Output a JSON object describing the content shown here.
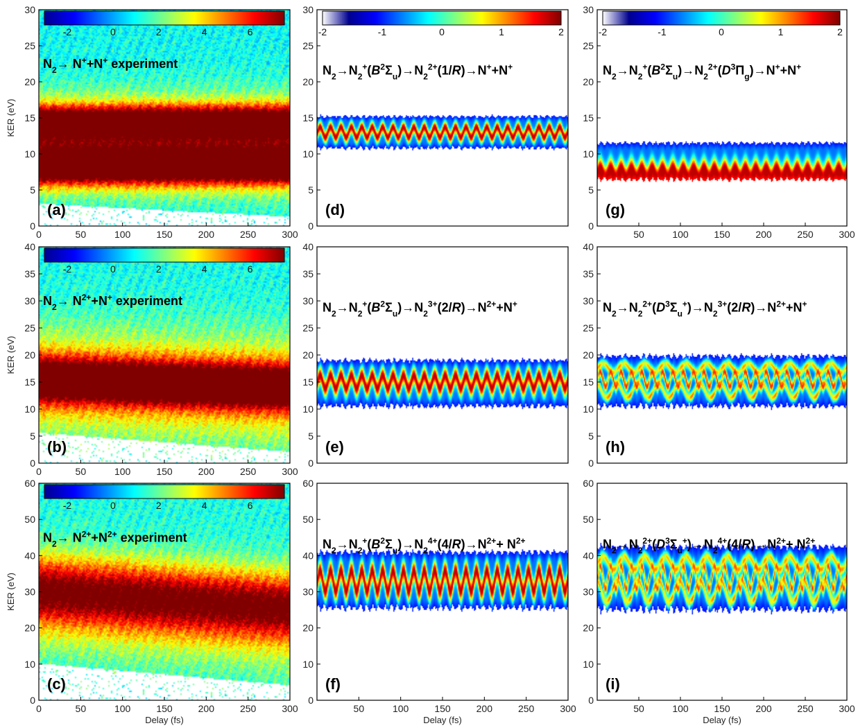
{
  "figure": {
    "colormap": [
      "#00008f",
      "#0000ff",
      "#0080ff",
      "#00ffff",
      "#80ff80",
      "#ffff00",
      "#ff8000",
      "#ff0000",
      "#800000"
    ]
  },
  "chart_data": [
    {
      "id": "a",
      "label": "(a)",
      "type": "heatmap",
      "kind": "experiment",
      "title_runs": [
        [
          "N",
          "n"
        ],
        [
          "2",
          "sub"
        ],
        [
          "→ N",
          "n"
        ],
        [
          "+",
          "sup"
        ],
        [
          "+N",
          "n"
        ],
        [
          "+",
          "sup"
        ],
        [
          " experiment",
          "n"
        ]
      ],
      "ylabel": "KER (eV)",
      "xlabel": "",
      "xlim": [
        0,
        300
      ],
      "ylim": [
        0,
        30
      ],
      "xticks": [
        "0",
        "50",
        "100",
        "150",
        "200",
        "250",
        "300"
      ],
      "yticks": [
        "0",
        "5",
        "10",
        "15",
        "20",
        "25",
        "30"
      ],
      "colorbar": {
        "range": [
          -3,
          7.5
        ],
        "ticks": [
          "-2",
          "0",
          "2",
          "4",
          "6"
        ],
        "tick_values": [
          -2,
          0,
          2,
          4,
          6
        ]
      },
      "bands": [
        {
          "center": 8.2,
          "width": 2.4,
          "amp": 7.3
        },
        {
          "center": 14.5,
          "width": 2.2,
          "amp": 6.4
        },
        {
          "center": 11.3,
          "width": 6.0,
          "amp": 4.6
        }
      ],
      "background": 1.0,
      "drift": 0,
      "low_cut_start": 3.0,
      "low_cut_end": 1.2
    },
    {
      "id": "b",
      "label": "(b)",
      "type": "heatmap",
      "kind": "experiment",
      "title_runs": [
        [
          "N",
          "n"
        ],
        [
          "2",
          "sub"
        ],
        [
          "→ N",
          "n"
        ],
        [
          "2+",
          "sup"
        ],
        [
          "+N",
          "n"
        ],
        [
          "+",
          "sup"
        ],
        [
          " experiment",
          "n"
        ]
      ],
      "ylabel": "KER (eV)",
      "xlabel": "",
      "xlim": [
        0,
        300
      ],
      "ylim": [
        0,
        40
      ],
      "xticks": [
        "0",
        "50",
        "100",
        "150",
        "200",
        "250",
        "300"
      ],
      "yticks": [
        "0",
        "5",
        "10",
        "15",
        "20",
        "25",
        "30",
        "35",
        "40"
      ],
      "colorbar": {
        "range": [
          -3,
          7.5
        ],
        "ticks": [
          "-2",
          "0",
          "2",
          "4",
          "6"
        ],
        "tick_values": [
          -2,
          0,
          2,
          4,
          6
        ]
      },
      "bands": [
        {
          "center": 15.5,
          "width": 4.0,
          "amp": 6.6
        },
        {
          "center": 15.0,
          "width": 9.5,
          "amp": 3.6
        }
      ],
      "background": 1.1,
      "drift": -1.5,
      "low_cut_start": 5.5,
      "low_cut_end": 2.0
    },
    {
      "id": "c",
      "label": "(c)",
      "type": "heatmap",
      "kind": "experiment",
      "title_runs": [
        [
          "N",
          "n"
        ],
        [
          "2",
          "sub"
        ],
        [
          "→ N",
          "n"
        ],
        [
          "2+",
          "sup"
        ],
        [
          "+N",
          "n"
        ],
        [
          "2+",
          "sup"
        ],
        [
          " experiment",
          "n"
        ]
      ],
      "ylabel": "KER (eV)",
      "xlabel": "Delay (fs)",
      "xlim": [
        0,
        300
      ],
      "ylim": [
        0,
        60
      ],
      "xticks": [
        "0",
        "50",
        "100",
        "150",
        "200",
        "250",
        "300"
      ],
      "yticks": [
        "0",
        "10",
        "20",
        "30",
        "40",
        "50",
        "60"
      ],
      "colorbar": {
        "range": [
          -3,
          7.5
        ],
        "ticks": [
          "-2",
          "0",
          "2",
          "4",
          "6"
        ],
        "tick_values": [
          -2,
          0,
          2,
          4,
          6
        ]
      },
      "bands": [
        {
          "center": 31.0,
          "width": 9.0,
          "amp": 5.0
        },
        {
          "center": 26.0,
          "width": 13.0,
          "amp": 2.4
        }
      ],
      "background": 1.2,
      "drift": -5.0,
      "low_cut_start": 10.0,
      "low_cut_end": 4.0
    },
    {
      "id": "d",
      "label": "(d)",
      "type": "heatmap",
      "kind": "simulation",
      "title_runs": [
        [
          "N",
          "n"
        ],
        [
          "2",
          "sub"
        ],
        [
          "→N",
          "n"
        ],
        [
          "2",
          "sub"
        ],
        [
          "+",
          "sup"
        ],
        [
          "(",
          "n"
        ],
        [
          "B",
          "i"
        ],
        [
          "2",
          "sup"
        ],
        [
          "Σ",
          "n"
        ],
        [
          "u",
          "sub"
        ],
        [
          ")→N",
          "n"
        ],
        [
          "2",
          "sub"
        ],
        [
          "2+",
          "sup"
        ],
        [
          "(1/",
          "n"
        ],
        [
          "R",
          "i"
        ],
        [
          ")→N",
          "n"
        ],
        [
          "+",
          "sup"
        ],
        [
          "+N",
          "n"
        ],
        [
          "+",
          "sup"
        ]
      ],
      "ylabel": "",
      "xlabel": "",
      "xlim": [
        0,
        300
      ],
      "ylim": [
        0,
        30
      ],
      "xticks": [],
      "yticks": [
        "0",
        "5",
        "10",
        "15",
        "20",
        "25",
        "30"
      ],
      "colorbar": {
        "range": [
          -2,
          2
        ],
        "ticks": [
          "-2",
          "-1",
          "0",
          "1",
          "2"
        ],
        "tick_values": [
          -2,
          -1,
          0,
          1,
          2
        ]
      },
      "band": {
        "center": 13.0,
        "low": 10.8,
        "high": 15.2,
        "osc_amp": 0.7,
        "period": 12.5
      },
      "sim_style": "regular"
    },
    {
      "id": "e",
      "label": "(e)",
      "type": "heatmap",
      "kind": "simulation",
      "title_runs": [
        [
          "N",
          "n"
        ],
        [
          "2",
          "sub"
        ],
        [
          "→N",
          "n"
        ],
        [
          "2",
          "sub"
        ],
        [
          "+",
          "sup"
        ],
        [
          "(",
          "n"
        ],
        [
          "B",
          "i"
        ],
        [
          "2",
          "sup"
        ],
        [
          "Σ",
          "n"
        ],
        [
          "u",
          "sub"
        ],
        [
          ")→N",
          "n"
        ],
        [
          "2",
          "sub"
        ],
        [
          "3+",
          "sup"
        ],
        [
          "(2/",
          "n"
        ],
        [
          "R",
          "i"
        ],
        [
          ")→N",
          "n"
        ],
        [
          "2+",
          "sup"
        ],
        [
          "+N",
          "n"
        ],
        [
          "+",
          "sup"
        ]
      ],
      "ylabel": "",
      "xlabel": "",
      "xlim": [
        0,
        300
      ],
      "ylim": [
        0,
        40
      ],
      "xticks": [],
      "yticks": [
        "0",
        "5",
        "10",
        "15",
        "20",
        "25",
        "30",
        "35",
        "40"
      ],
      "band": {
        "center": 15.0,
        "low": 10.5,
        "high": 19.0,
        "osc_amp": 1.2,
        "period": 12.5
      },
      "sim_style": "regular"
    },
    {
      "id": "f",
      "label": "(f)",
      "type": "heatmap",
      "kind": "simulation",
      "title_runs": [
        [
          "N",
          "n"
        ],
        [
          "2",
          "sub"
        ],
        [
          "→N",
          "n"
        ],
        [
          "2",
          "sub"
        ],
        [
          "+",
          "sup"
        ],
        [
          "(",
          "n"
        ],
        [
          "B",
          "i"
        ],
        [
          "2",
          "sup"
        ],
        [
          "Σ",
          "n"
        ],
        [
          "u",
          "sub"
        ],
        [
          ")→N",
          "n"
        ],
        [
          "2",
          "sub"
        ],
        [
          "4+",
          "sup"
        ],
        [
          "(4/",
          "n"
        ],
        [
          "R",
          "i"
        ],
        [
          ")→N",
          "n"
        ],
        [
          "2+",
          "sup"
        ],
        [
          "+ N",
          "n"
        ],
        [
          "2+",
          "sup"
        ]
      ],
      "ylabel": "",
      "xlabel": "Delay (fs)",
      "xlim": [
        0,
        300
      ],
      "ylim": [
        0,
        60
      ],
      "xticks": [
        "50",
        "100",
        "150",
        "200",
        "250",
        "300"
      ],
      "yticks": [
        "0",
        "10",
        "20",
        "30",
        "40",
        "50",
        "60"
      ],
      "band": {
        "center": 33.0,
        "low": 25.5,
        "high": 41.0,
        "osc_amp": 2.8,
        "period": 12.5
      },
      "sim_style": "regular"
    },
    {
      "id": "g",
      "label": "(g)",
      "type": "heatmap",
      "kind": "simulation",
      "title_runs": [
        [
          "N",
          "n"
        ],
        [
          "2",
          "sub"
        ],
        [
          "→N",
          "n"
        ],
        [
          "2",
          "sub"
        ],
        [
          "+",
          "sup"
        ],
        [
          "(",
          "n"
        ],
        [
          "B",
          "i"
        ],
        [
          "2",
          "sup"
        ],
        [
          "Σ",
          "n"
        ],
        [
          "u",
          "sub"
        ],
        [
          ")→N",
          "n"
        ],
        [
          "2",
          "sub"
        ],
        [
          "2+",
          "sup"
        ],
        [
          "(",
          "n"
        ],
        [
          "D",
          "i"
        ],
        [
          "3",
          "sup"
        ],
        [
          "Π",
          "n"
        ],
        [
          "g",
          "sub"
        ],
        [
          ")→N",
          "n"
        ],
        [
          "+",
          "sup"
        ],
        [
          "+N",
          "n"
        ],
        [
          "+",
          "sup"
        ]
      ],
      "ylabel": "",
      "xlabel": "",
      "xlim": [
        0,
        300
      ],
      "ylim": [
        0,
        30
      ],
      "xticks": [
        "50",
        "100",
        "150",
        "200",
        "250",
        "300"
      ],
      "yticks": [
        "0",
        "5",
        "10",
        "15",
        "20",
        "25",
        "30"
      ],
      "colorbar": {
        "range": [
          -2,
          2
        ],
        "ticks": [
          "-2",
          "-1",
          "0",
          "1",
          "2"
        ],
        "tick_values": [
          -2,
          -1,
          0,
          1,
          2
        ]
      },
      "band": {
        "center": 7.6,
        "low": 6.4,
        "high": 11.5,
        "osc_amp": 0.6,
        "period": 12.5
      },
      "sim_style": "lower"
    },
    {
      "id": "h",
      "label": "(h)",
      "type": "heatmap",
      "kind": "simulation",
      "title_runs": [
        [
          "N",
          "n"
        ],
        [
          "2",
          "sub"
        ],
        [
          "→N",
          "n"
        ],
        [
          "2",
          "sub"
        ],
        [
          "2+",
          "sup"
        ],
        [
          "(",
          "n"
        ],
        [
          "D",
          "i"
        ],
        [
          "3",
          "sup"
        ],
        [
          "Σ",
          "n"
        ],
        [
          "u",
          "sub"
        ],
        [
          "+",
          "sup"
        ],
        [
          ")→N",
          "n"
        ],
        [
          "2",
          "sub"
        ],
        [
          "3+",
          "sup"
        ],
        [
          "(2/",
          "n"
        ],
        [
          "R",
          "i"
        ],
        [
          ")→N",
          "n"
        ],
        [
          "2+",
          "sup"
        ],
        [
          "+N",
          "n"
        ],
        [
          "+",
          "sup"
        ]
      ],
      "ylabel": "",
      "xlabel": "",
      "xlim": [
        0,
        300
      ],
      "ylim": [
        0,
        40
      ],
      "xticks": [],
      "yticks": [
        "0",
        "5",
        "10",
        "15",
        "20",
        "25",
        "30",
        "35",
        "40"
      ],
      "band": {
        "center": 15.5,
        "low": 10.5,
        "high": 19.8,
        "osc_amp": 1.4,
        "period": 12.5
      },
      "sim_style": "checker"
    },
    {
      "id": "i",
      "label": "(i)",
      "type": "heatmap",
      "kind": "simulation",
      "title_runs": [
        [
          "N",
          "n"
        ],
        [
          "2",
          "sub"
        ],
        [
          "→N",
          "n"
        ],
        [
          "2",
          "sub"
        ],
        [
          "2+",
          "sup"
        ],
        [
          "(",
          "n"
        ],
        [
          "D",
          "i"
        ],
        [
          "3",
          "sup"
        ],
        [
          "Σ",
          "n"
        ],
        [
          "u",
          "sub"
        ],
        [
          "+",
          "sup"
        ],
        [
          ")→N",
          "n"
        ],
        [
          "2",
          "sub"
        ],
        [
          "4+",
          "sup"
        ],
        [
          "(4/",
          "n"
        ],
        [
          "R",
          "i"
        ],
        [
          ")→N",
          "n"
        ],
        [
          "2+",
          "sup"
        ],
        [
          "+ N",
          "n"
        ],
        [
          "2+",
          "sup"
        ]
      ],
      "ylabel": "",
      "xlabel": "Delay (fs)",
      "xlim": [
        0,
        300
      ],
      "ylim": [
        0,
        60
      ],
      "xticks": [
        "50",
        "100",
        "150",
        "200",
        "250",
        "300"
      ],
      "yticks": [
        "0",
        "10",
        "20",
        "30",
        "40",
        "50",
        "60"
      ],
      "band": {
        "center": 34.0,
        "low": 25.0,
        "high": 42.5,
        "osc_amp": 3.0,
        "period": 12.5
      },
      "sim_style": "checker"
    }
  ]
}
